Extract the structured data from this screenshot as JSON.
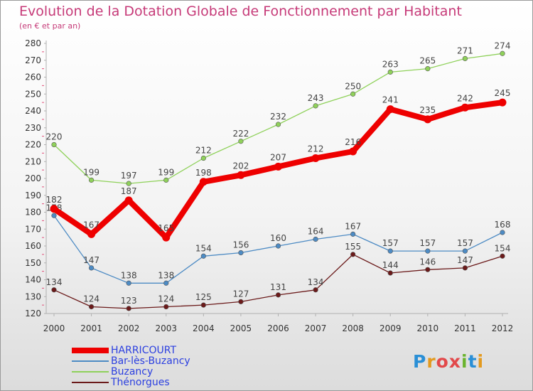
{
  "header": {
    "title": "Evolution de la Dotation Globale de Fonctionnement par Habitant",
    "subtitle": "(en € et par an)"
  },
  "colors": {
    "title": "#c63a78",
    "axis": "#b0b0b0",
    "tick_marker": "#e0507a"
  },
  "chart_data": {
    "type": "line",
    "x": [
      "2000",
      "2001",
      "2002",
      "2003",
      "2004",
      "2005",
      "2006",
      "2007",
      "2008",
      "2009",
      "2010",
      "2011",
      "2012"
    ],
    "ylim": [
      120,
      280
    ],
    "yticks": [
      120,
      130,
      140,
      150,
      160,
      170,
      180,
      190,
      200,
      210,
      220,
      230,
      240,
      250,
      260,
      270,
      280
    ],
    "grid": false,
    "legend_position": "bottom-left",
    "series": [
      {
        "name": "HARRICOURT",
        "color": "#ee0000",
        "values": [
          182,
          167,
          187,
          165,
          198,
          202,
          207,
          212,
          216,
          241,
          235,
          242,
          245
        ]
      },
      {
        "name": "Bar-lès-Buzancy",
        "color": "#4d8bc4",
        "values": [
          178,
          147,
          138,
          138,
          154,
          156,
          160,
          164,
          167,
          157,
          157,
          157,
          168
        ]
      },
      {
        "name": "Buzancy",
        "color": "#8fd15a",
        "values": [
          220,
          199,
          197,
          199,
          212,
          222,
          232,
          243,
          250,
          263,
          265,
          271,
          274
        ]
      },
      {
        "name": "Thénorgues",
        "color": "#6b1a1a",
        "values": [
          134,
          124,
          123,
          124,
          125,
          127,
          131,
          134,
          155,
          144,
          146,
          147,
          154
        ]
      }
    ]
  },
  "logo": {
    "letters": [
      "P",
      "r",
      "o",
      "x",
      "i",
      "t",
      "i"
    ],
    "colors": [
      "#2a8fd6",
      "#e39a1f",
      "#e2484a",
      "#e2484a",
      "#6ab42e",
      "#2a8fd6",
      "#e39a1f"
    ]
  }
}
